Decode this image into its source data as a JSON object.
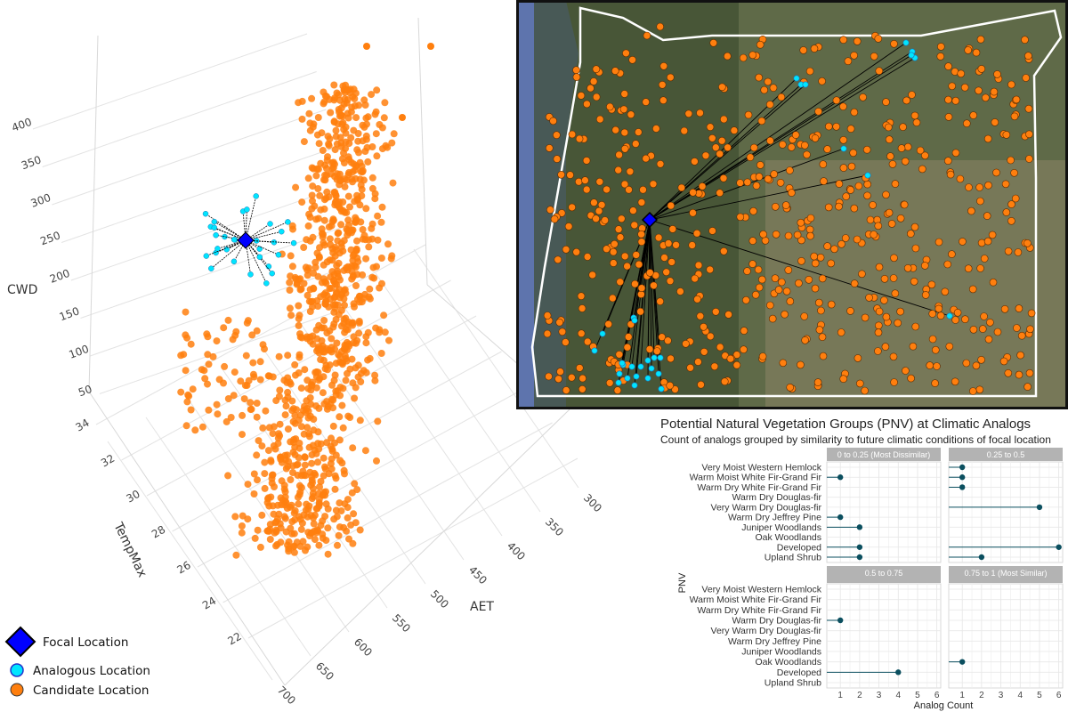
{
  "colors": {
    "focal": "#0000ff",
    "analog": "#00e5ff",
    "candidate": "#ff7f0e",
    "lollipop": "#0b4f5f",
    "strip": "#b3b3b3",
    "map_border": "#111111",
    "state_outline": "#ffffff"
  },
  "icons": {
    "focal": "diamond-icon",
    "analog": "circle-icon",
    "candidate": "circle-icon"
  },
  "chart_data": [
    {
      "type": "scatter",
      "subtype": "3d-scatter",
      "axes": {
        "x": {
          "label": "AET",
          "ticks": [
            "300",
            "350",
            "400",
            "450",
            "500",
            "550",
            "600",
            "650",
            "700"
          ]
        },
        "y": {
          "label": "TempMax",
          "ticks": [
            "34",
            "32",
            "30",
            "28",
            "26",
            "24",
            "22"
          ]
        },
        "z": {
          "label": "CWD",
          "ticks": [
            "400",
            "350",
            "300",
            "250",
            "200",
            "150",
            "100",
            "50"
          ]
        }
      },
      "grid": true,
      "legend_position": "bottom-left",
      "legend": [
        {
          "label": "Focal Location",
          "marker": "diamond",
          "color": "#0000ff"
        },
        {
          "label": "Analogous Location",
          "marker": "circle",
          "color": "#00e5ff"
        },
        {
          "label": "Candidate Location",
          "marker": "circle",
          "color": "#ff7f0e"
        }
      ]
    },
    {
      "type": "map",
      "markers": [
        "Focal Location",
        "Analogous Location",
        "Candidate Location"
      ]
    },
    {
      "type": "lollipop",
      "title": "Potential Natural Vegetation Groups (PNV) at Climatic Analogs",
      "subtitle": "Count of analogs grouped by similarity to future climatic conditions of focal location",
      "xlabel": "Analog Count",
      "ylabel": "PNV",
      "xticks": [
        "1",
        "2",
        "3",
        "4",
        "5",
        "6"
      ],
      "xlim": [
        0.3,
        6.2
      ],
      "grid": true,
      "categories": [
        "Very Moist Western Hemlock",
        "Warm Moist White Fir-Grand Fir",
        "Warm Dry White Fir-Grand Fir",
        "Warm Dry Douglas-fir",
        "Very Warm Dry Douglas-fir",
        "Warm Dry Jeffrey Pine",
        "Juniper Woodlands",
        "Oak Woodlands",
        "Developed",
        "Upland Shrub"
      ],
      "panels": [
        {
          "label": "0 to 0.25 (Most Dissimilar)",
          "values": [
            null,
            1,
            null,
            null,
            null,
            1,
            2,
            null,
            2,
            2
          ]
        },
        {
          "label": "0.25 to 0.5",
          "values": [
            1,
            1,
            1,
            null,
            5,
            null,
            null,
            null,
            6,
            2
          ]
        },
        {
          "label": "0.5 to 0.75",
          "values": [
            null,
            null,
            null,
            1,
            null,
            null,
            null,
            null,
            4,
            null
          ]
        },
        {
          "label": "0.75 to 1 (Most Similar)",
          "values": [
            null,
            null,
            null,
            null,
            null,
            null,
            null,
            1,
            null,
            null
          ]
        }
      ]
    }
  ]
}
